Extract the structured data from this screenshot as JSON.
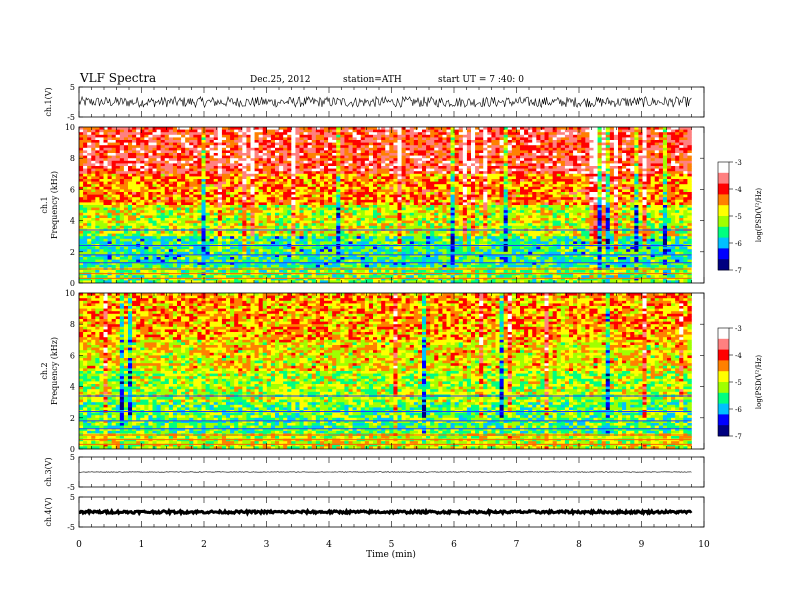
{
  "header": {
    "title": "VLF Spectra",
    "date": "Dec.25, 2012",
    "station": "station=ATH",
    "start": "start UT =  7 :40: 0"
  },
  "chart_data": {
    "type": "heatmap",
    "time_axis": {
      "label": "Time (min)",
      "range": [
        0,
        10
      ],
      "ticks": [
        "0",
        "1",
        "2",
        "3",
        "4",
        "5",
        "6",
        "7",
        "8",
        "9",
        "10"
      ],
      "data_end": 9.8
    },
    "colorbar": {
      "label": "log(PSD(V²/Hz)",
      "range": [
        -7,
        -3
      ],
      "ticks": [
        "-3",
        "-4",
        "-5",
        "-6",
        "-7"
      ],
      "colors": [
        "#000080",
        "#0000ff",
        "#00c0ff",
        "#00ff80",
        "#a0ff00",
        "#ffff00",
        "#ff8000",
        "#ff0000",
        "#ff8080",
        "#ffffff"
      ]
    },
    "panels": [
      {
        "kind": "waveform",
        "channel": "ch.1",
        "ylabel": "ch.1(V)",
        "yrange": [
          -5,
          5
        ],
        "ticks": [
          "5",
          "-5"
        ],
        "amplitude_level": 0.35
      },
      {
        "kind": "spectrogram",
        "channel": "ch.1",
        "ylabel": "Frequency (kHz)",
        "chlabel": "ch.1",
        "yrange": [
          0,
          10
        ],
        "ticks": [
          "0",
          "2",
          "4",
          "6",
          "8",
          "10"
        ],
        "band_levels": {
          "0-1": -5.3,
          "1-3": -5.6,
          "3-5": -5.0,
          "5-7": -4.4,
          "7-10": -3.9
        }
      },
      {
        "kind": "spectrogram",
        "channel": "ch.2",
        "ylabel": "Frequency (kHz)",
        "chlabel": "ch.2",
        "yrange": [
          0,
          10
        ],
        "ticks": [
          "0",
          "2",
          "4",
          "6",
          "8",
          "10"
        ],
        "band_levels": {
          "0-1": -5.0,
          "1-3": -5.4,
          "3-5": -5.1,
          "5-7": -4.8,
          "7-10": -4.5
        }
      },
      {
        "kind": "waveform",
        "channel": "ch.3",
        "ylabel": "ch.3(V)",
        "yrange": [
          -5,
          5
        ],
        "ticks": [
          "5",
          "-5"
        ],
        "amplitude_level": 0.02
      },
      {
        "kind": "waveform",
        "channel": "ch.4",
        "ylabel": "ch.4(V)",
        "yrange": [
          -5,
          5
        ],
        "ticks": [
          "5",
          "-5"
        ],
        "amplitude_level": 0.08
      }
    ]
  }
}
